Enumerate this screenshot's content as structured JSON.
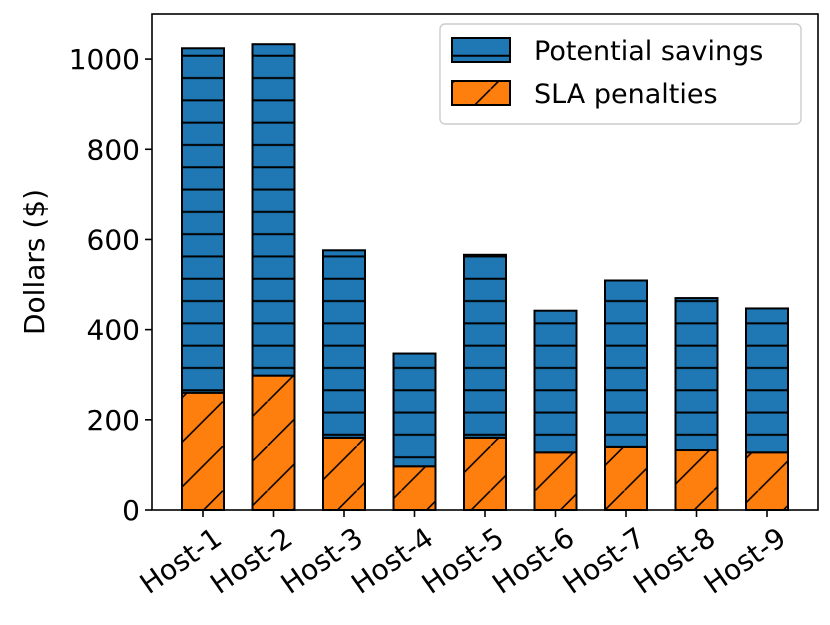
{
  "chart_data": {
    "type": "bar",
    "stacked": true,
    "title": "",
    "xlabel": "",
    "ylabel": "Dollars ($)",
    "ylim": [
      0,
      1100
    ],
    "yticks": [
      0,
      200,
      400,
      600,
      800,
      1000
    ],
    "categories": [
      "Host-1",
      "Host-2",
      "Host-3",
      "Host-4",
      "Host-5",
      "Host-6",
      "Host-7",
      "Host-8",
      "Host-9"
    ],
    "series": [
      {
        "name": "SLA penalties",
        "color": "#ff7f0e",
        "hatch": "diagonal",
        "values": [
          260,
          298,
          160,
          97,
          160,
          128,
          140,
          133,
          128
        ]
      },
      {
        "name": "Potential savings",
        "color": "#1f77b4",
        "hatch": "horizontal",
        "values": [
          764,
          735,
          416,
          250,
          406,
          314,
          369,
          337,
          319
        ]
      }
    ],
    "legend": {
      "position": "top-right",
      "entries": [
        "Potential savings",
        "SLA penalties"
      ]
    }
  }
}
